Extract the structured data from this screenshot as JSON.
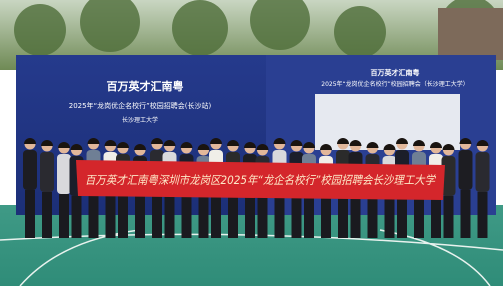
{
  "backdrop_left": {
    "title": "百万英才汇南粤",
    "subtitle": "2025年“龙岗优企名校行”校园招聘会(长沙站)",
    "venue": "长沙理工大学"
  },
  "backdrop_right": {
    "title": "百万英才汇南粤",
    "subtitle": "2025年“龙岗优企名校行”校园招聘会（长沙理工大学）"
  },
  "banner": {
    "text": "百万英才汇南粤深圳市龙岗区2025年“龙企名校行”校园招聘会长沙理工大学"
  }
}
